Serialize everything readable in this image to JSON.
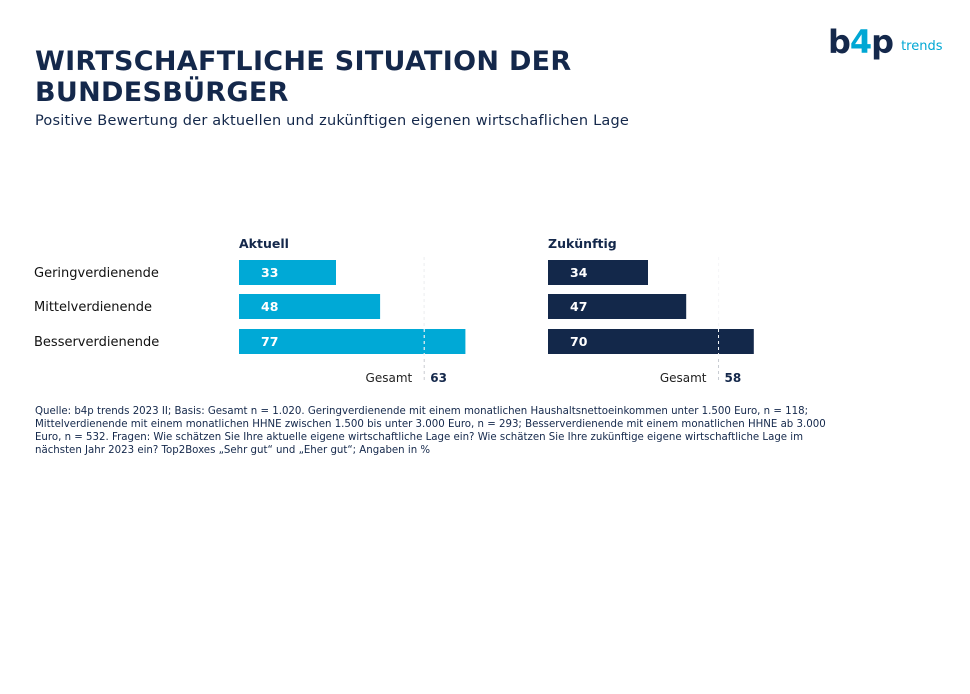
{
  "header": {
    "title": "WIRTSCHAFTLICHE SITUATION DER BUNDESBÜRGER",
    "subtitle": "Positive Bewertung der aktuellen und zukünftigen eigenen wirtschaflichen Lage"
  },
  "logo": {
    "mark_prefix": "b",
    "mark_four": "4",
    "mark_suffix": "p",
    "text": "trends",
    "color_dark": "#14284b",
    "color_accent": "#00a7d4"
  },
  "chart_data": {
    "type": "bar",
    "orientation": "horizontal",
    "categories": [
      "Geringverdienende",
      "Mittelverdienende",
      "Besserverdienende"
    ],
    "xlim": [
      0,
      100
    ],
    "panels": [
      {
        "title": "Aktuell",
        "values": [
          33,
          48,
          77
        ],
        "total_label": "Gesamt",
        "total": 63,
        "color": "#00a9d6"
      },
      {
        "title": "Zukünftig",
        "values": [
          34,
          47,
          70
        ],
        "total_label": "Gesamt",
        "total": 58,
        "color": "#13284a"
      }
    ]
  },
  "source": "Quelle: b4p trends 2023 II; Basis: Gesamt n = 1.020. Geringverdienende mit einem monatlichen Haushaltsnettoeinkommen unter 1.500 Euro, n = 118; Mittelverdienende mit einem monatlichen HHNE zwischen 1.500 bis unter 3.000 Euro, n = 293; Besserverdienende mit einem monatlichen HHNE ab 3.000 Euro, n = 532. Fragen: Wie schätzen Sie Ihre aktuelle eigene wirtschaftliche Lage ein? Wie schätzen Sie Ihre zukünftige eigene wirtschaftliche Lage im nächsten Jahr 2023 ein? Top2Boxes „Sehr gut“ und „Eher gut“; Angaben in %"
}
